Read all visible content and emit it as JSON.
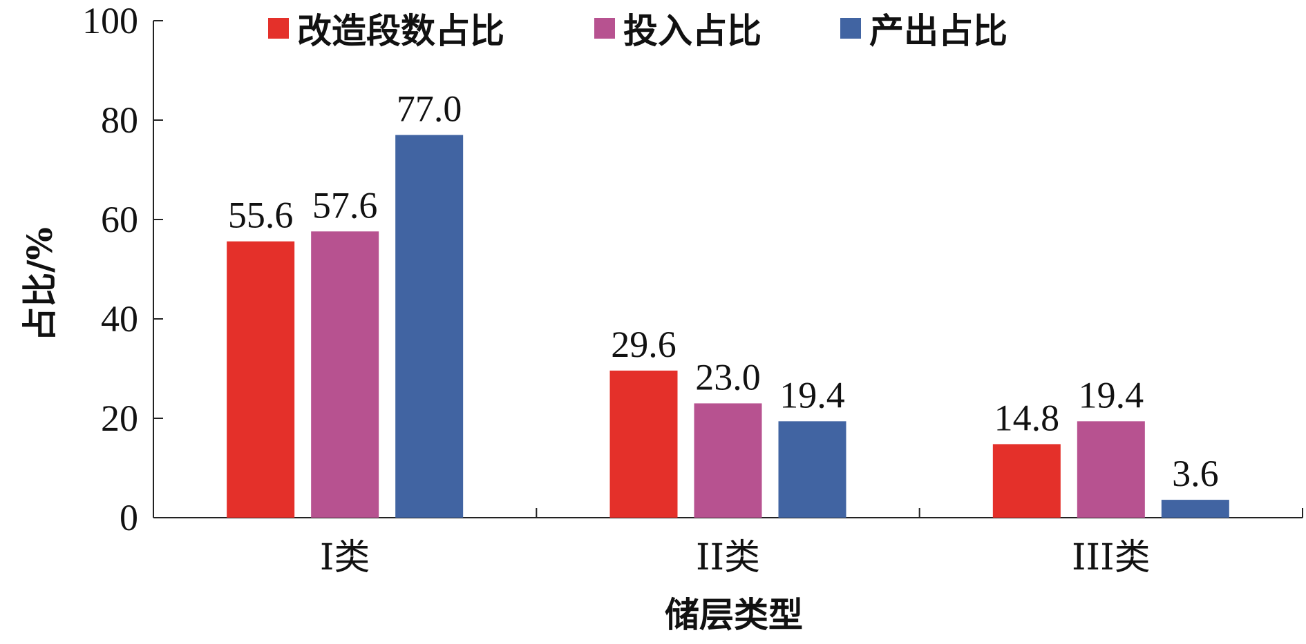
{
  "chart_data": {
    "type": "bar",
    "categories": [
      "I类",
      "II类",
      "III类"
    ],
    "series": [
      {
        "name": "改造段数占比",
        "color": "#e4302a",
        "values": [
          55.6,
          29.6,
          14.8
        ],
        "labels": [
          "55.6",
          "29.6",
          "14.8"
        ]
      },
      {
        "name": "投入占比",
        "color": "#b75290",
        "values": [
          57.6,
          23.0,
          19.4
        ],
        "labels": [
          "57.6",
          "23.0",
          "19.4"
        ]
      },
      {
        "name": "产出占比",
        "color": "#4164a2",
        "values": [
          77.0,
          19.4,
          3.6
        ],
        "labels": [
          "77.0",
          "19.4",
          "3.6"
        ]
      }
    ],
    "xlabel": "储层类型",
    "ylabel": "占比/%",
    "ylim": [
      0,
      100
    ],
    "yticks": [
      "0",
      "20",
      "40",
      "60",
      "80",
      "100"
    ],
    "legend_position": "top",
    "grid": false
  }
}
